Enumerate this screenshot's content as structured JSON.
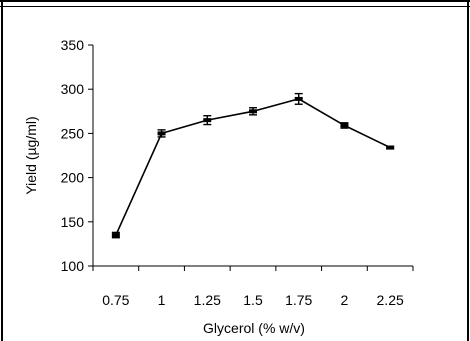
{
  "chart_data": {
    "type": "line",
    "title": "",
    "xlabel": "Glycerol (% w/v)",
    "ylabel": "Yield (µg/ml)",
    "categories": [
      "0.75",
      "1",
      "1.25",
      "1.5",
      "1.75",
      "2",
      "2.25"
    ],
    "values": [
      135,
      250,
      265,
      275,
      289,
      259,
      234
    ],
    "error": [
      3,
      4,
      5,
      4,
      6,
      3,
      1.5
    ],
    "ylim": [
      100,
      350
    ],
    "yticks": [
      "100",
      "150",
      "200",
      "250",
      "300",
      "350"
    ],
    "grid": false,
    "legend": "none",
    "line_color": "#000000"
  }
}
